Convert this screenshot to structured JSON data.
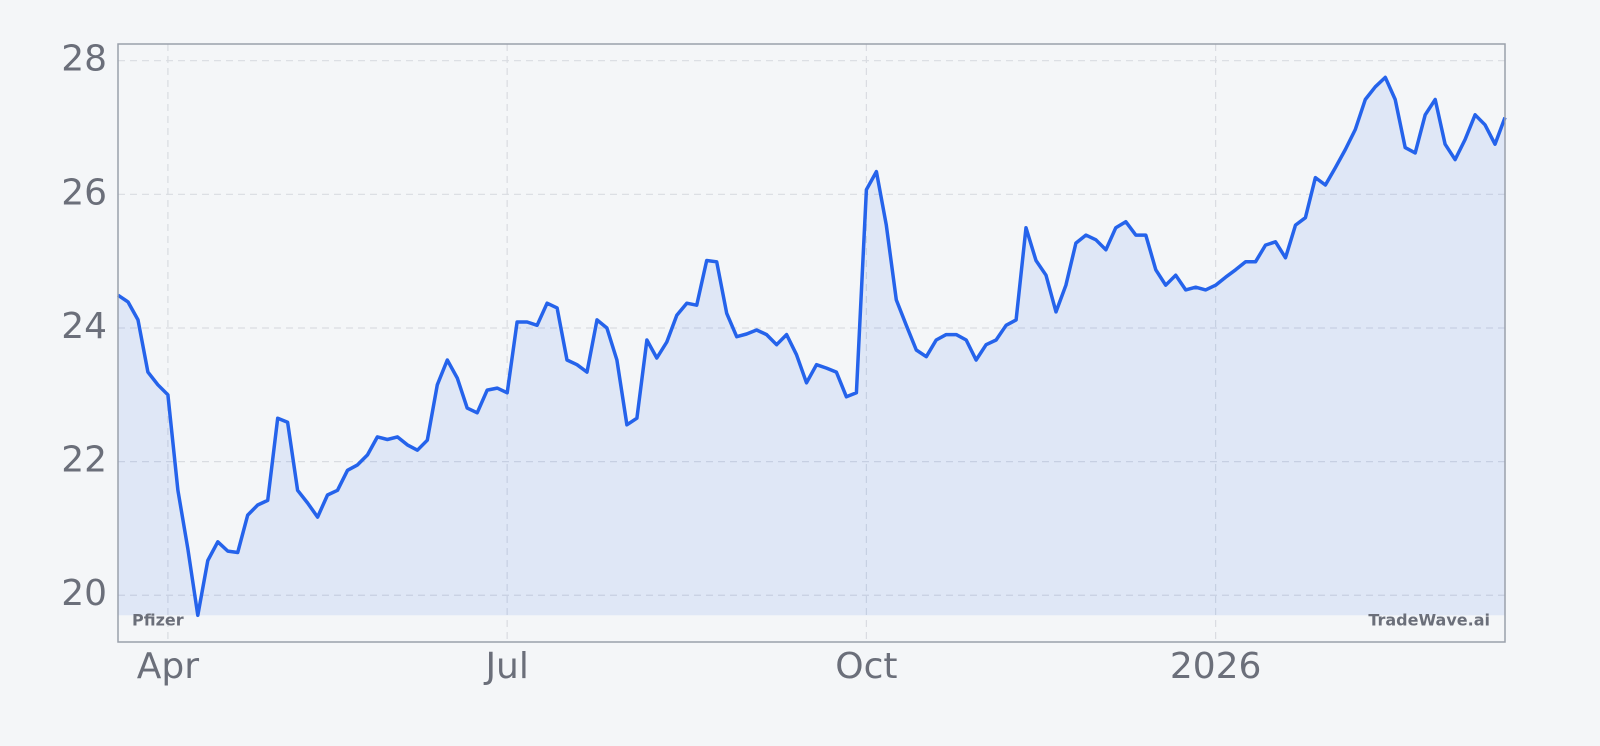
{
  "chart_data": {
    "type": "line",
    "categories": [
      null,
      null,
      null,
      null,
      null,
      "Apr",
      null,
      null,
      null,
      null,
      null,
      null,
      null,
      null,
      null,
      null,
      null,
      null,
      null,
      null,
      null,
      null,
      null,
      null,
      null,
      null,
      null,
      null,
      null,
      null,
      null,
      null,
      null,
      null,
      null,
      null,
      null,
      null,
      null,
      "Jul",
      null,
      null,
      null,
      null,
      null,
      null,
      null,
      null,
      null,
      null,
      null,
      null,
      null,
      null,
      null,
      null,
      null,
      null,
      null,
      null,
      null,
      null,
      null,
      null,
      null,
      null,
      null,
      null,
      null,
      null,
      null,
      null,
      null,
      null,
      null,
      "Oct",
      null,
      null,
      null,
      null,
      null,
      null,
      null,
      null,
      null,
      null,
      null,
      null,
      null,
      null,
      null,
      null,
      null,
      null,
      null,
      null,
      null,
      null,
      null,
      null,
      null,
      null,
      null,
      null,
      null,
      null,
      null,
      null,
      null,
      null,
      "2026",
      null,
      null,
      null,
      null,
      null,
      null,
      null,
      null,
      null,
      null,
      null,
      null,
      null,
      null,
      null,
      null,
      null,
      null,
      null,
      null,
      null,
      null,
      null,
      null,
      null,
      null,
      null,
      null,
      null
    ],
    "series": [
      {
        "name": "Pfizer",
        "color": "#2563eb",
        "values": [
          24.49,
          24.39,
          24.12,
          23.34,
          23.15,
          23.0,
          21.57,
          20.7,
          19.7,
          20.52,
          20.8,
          20.66,
          20.64,
          21.2,
          21.35,
          21.42,
          22.65,
          22.59,
          21.57,
          21.38,
          21.17,
          21.5,
          21.57,
          21.87,
          21.95,
          22.1,
          22.37,
          22.33,
          22.37,
          22.25,
          22.17,
          22.32,
          23.15,
          23.52,
          23.25,
          22.8,
          22.73,
          23.07,
          23.1,
          23.03,
          24.09,
          24.09,
          24.04,
          24.37,
          24.3,
          23.52,
          23.45,
          23.34,
          24.12,
          24.0,
          23.52,
          22.55,
          22.65,
          23.82,
          23.55,
          23.79,
          24.19,
          24.37,
          24.34,
          25.01,
          24.99,
          24.22,
          23.87,
          23.91,
          23.97,
          23.9,
          23.75,
          23.9,
          23.6,
          23.18,
          23.45,
          23.4,
          23.34,
          22.97,
          23.03,
          26.07,
          26.34,
          25.54,
          24.42,
          24.04,
          23.67,
          23.57,
          23.82,
          23.9,
          23.9,
          23.82,
          23.52,
          23.75,
          23.82,
          24.04,
          24.12,
          25.5,
          25.01,
          24.79,
          24.24,
          24.64,
          25.27,
          25.39,
          25.32,
          25.17,
          25.5,
          25.59,
          25.39,
          25.39,
          24.87,
          24.64,
          24.79,
          24.57,
          24.61,
          24.57,
          24.64,
          24.76,
          24.87,
          24.99,
          24.99,
          25.24,
          25.29,
          25.05,
          25.54,
          25.65,
          26.25,
          26.14,
          26.4,
          26.67,
          26.97,
          27.42,
          27.61,
          27.75,
          27.42,
          26.7,
          26.62,
          27.19,
          27.42,
          26.75,
          26.52,
          26.82,
          27.19,
          27.04,
          26.75,
          27.15
        ]
      }
    ],
    "watermark": "TradeWave.ai",
    "ylim": [
      19.3,
      28.25
    ],
    "yticks": [
      20,
      22,
      24,
      26,
      28
    ],
    "grid": true
  }
}
